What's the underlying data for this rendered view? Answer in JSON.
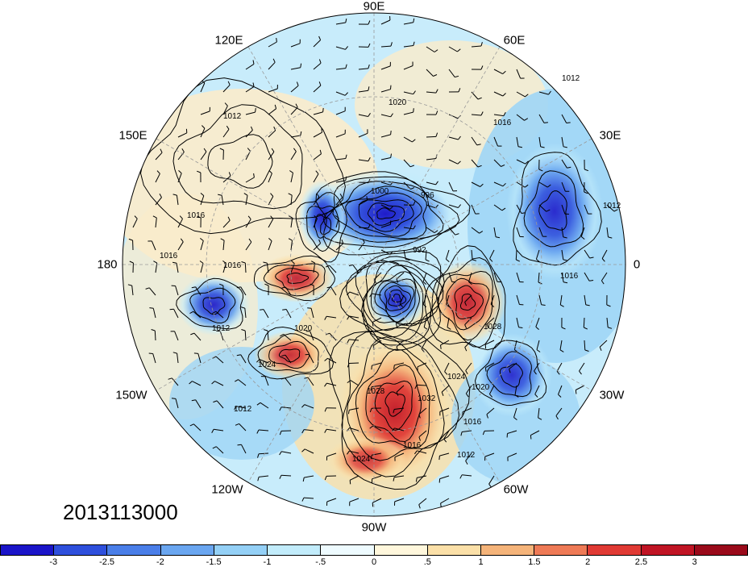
{
  "timestamp": "2013113000",
  "longitude_labels": [
    {
      "text": "90E"
    },
    {
      "text": "60E"
    },
    {
      "text": "30E"
    },
    {
      "text": "0"
    },
    {
      "text": "30W"
    },
    {
      "text": "60W"
    },
    {
      "text": "90W"
    },
    {
      "text": "120W"
    },
    {
      "text": "150W"
    },
    {
      "text": "180"
    },
    {
      "text": "150E"
    },
    {
      "text": "120E"
    }
  ],
  "isobar_labels": [
    "1020",
    "1012",
    "1016",
    "1012",
    "1016",
    "996",
    "1000",
    "1012",
    "1016",
    "992",
    "1016",
    "1016",
    "1012",
    "1020",
    "1024",
    "1028",
    "1024",
    "1020",
    "1016",
    "1012",
    "1032",
    "1028",
    "1016",
    "1024",
    "1012"
  ],
  "colorbar": {
    "colors": [
      "#1a14c8",
      "#2e4fdc",
      "#4a7ee8",
      "#6aa6f0",
      "#94d0f6",
      "#c2ecfb",
      "#eefbff",
      "#fff7dc",
      "#fbe0a8",
      "#f5b47a",
      "#ee7a56",
      "#e03a34",
      "#c01424",
      "#9a0a1a"
    ],
    "tick_labels": [
      "-3",
      "-2.5",
      "-2",
      "-1.5",
      "-1",
      "-.5",
      "0",
      ".5",
      "1",
      "1.5",
      "2",
      "2.5",
      "3"
    ]
  },
  "anomaly_centers": [
    {
      "type": "negative",
      "strength": 2.8
    },
    {
      "type": "negative",
      "strength": 2.6
    },
    {
      "type": "negative",
      "strength": 2.4
    },
    {
      "type": "negative",
      "strength": 2.0
    },
    {
      "type": "negative",
      "strength": 2.2
    },
    {
      "type": "negative",
      "strength": 2.6
    },
    {
      "type": "positive",
      "strength": 2.4
    },
    {
      "type": "positive",
      "strength": 2.2
    },
    {
      "type": "positive",
      "strength": 2.6
    },
    {
      "type": "positive",
      "strength": 2.0
    },
    {
      "type": "positive",
      "strength": 1.6
    }
  ]
}
